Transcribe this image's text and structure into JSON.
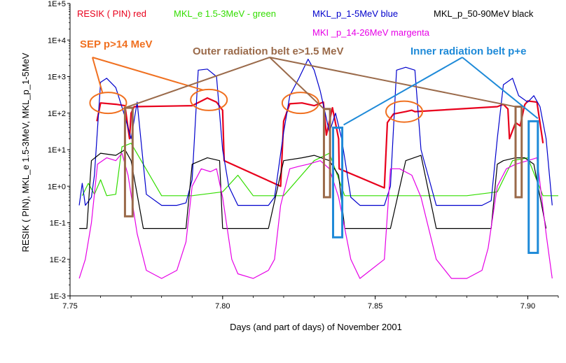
{
  "chart_data": {
    "type": "line",
    "title": "",
    "xlabel": "Days (and part of days) of November 2001",
    "ylabel": "RESIK ( PIN), MKL_e 1.5-3MeV,  MKL_p_1-5MeV",
    "y_scale": "log",
    "xlim": [
      7.75,
      7.91
    ],
    "ylim": [
      0.001,
      100000
    ],
    "x_ticks": [
      7.75,
      7.8,
      7.85,
      7.9
    ],
    "x_tick_labels": [
      "7.75",
      "7.80",
      "7.85",
      "7.90"
    ],
    "y_ticks": [
      0.001,
      0.01,
      0.1,
      1,
      10,
      100,
      1000,
      10000,
      100000
    ],
    "y_tick_labels": [
      "1E-3",
      "1E-2",
      "1E-1",
      "1E+0",
      "1E+1",
      "1E+2",
      "1E+3",
      "1E+4",
      "1E+5"
    ],
    "legend_position": "top",
    "series": [
      {
        "name": "RESIK ( PIN) red",
        "color": "#e8001c",
        "x": [
          7.7588,
          7.76,
          7.765,
          7.768,
          7.7695,
          7.77,
          7.771,
          7.79,
          7.795,
          7.798,
          7.8,
          7.8005,
          7.819,
          7.82,
          7.822,
          7.826,
          7.83,
          7.833,
          7.834,
          7.835,
          7.836,
          7.838,
          7.8382,
          7.853,
          7.854,
          7.856,
          7.86,
          7.862,
          7.863,
          7.89,
          7.892,
          7.8935,
          7.894,
          7.896,
          7.8975,
          7.899,
          7.9,
          7.903,
          7.905
        ],
        "y": [
          60,
          190,
          175,
          160,
          20,
          100,
          150,
          160,
          260,
          200,
          120,
          5,
          1,
          60,
          180,
          190,
          160,
          200,
          25,
          60,
          140,
          20,
          3,
          0.9,
          55,
          95,
          110,
          120,
          110,
          150,
          175,
          130,
          20,
          55,
          45,
          170,
          215,
          200,
          15
        ]
      },
      {
        "name": "MKL_e 1.5-3MeV - green",
        "color": "#33dd00",
        "x": [
          7.754,
          7.756,
          7.758,
          7.76,
          7.762,
          7.765,
          7.767,
          7.77,
          7.78,
          7.785,
          7.79,
          7.8,
          7.805,
          7.81,
          7.815,
          7.82,
          7.83,
          7.835,
          7.84,
          7.85,
          7.86,
          7.87,
          7.88,
          7.89,
          7.895,
          7.9,
          7.905,
          7.91
        ],
        "y": [
          0.55,
          1.2,
          0.6,
          1.5,
          0.55,
          0.6,
          12,
          15,
          0.55,
          0.55,
          0.55,
          0.7,
          2,
          0.55,
          0.55,
          0.55,
          5,
          8,
          0.55,
          0.55,
          0.55,
          0.55,
          0.55,
          0.7,
          5,
          6,
          0.55,
          0.55
        ]
      },
      {
        "name": "MKL_p_1-5MeV blue",
        "color": "#0000cc",
        "x": [
          7.753,
          7.754,
          7.755,
          7.757,
          7.758,
          7.76,
          7.762,
          7.765,
          7.768,
          7.77,
          7.772,
          7.775,
          7.78,
          7.785,
          7.788,
          7.79,
          7.792,
          7.795,
          7.798,
          7.8,
          7.802,
          7.805,
          7.81,
          7.815,
          7.817,
          7.82,
          7.822,
          7.825,
          7.828,
          7.83,
          7.832,
          7.835,
          7.837,
          7.839,
          7.842,
          7.845,
          7.85,
          7.853,
          7.855,
          7.857,
          7.86,
          7.863,
          7.865,
          7.87,
          7.875,
          7.88,
          7.885,
          7.888,
          7.89,
          7.892,
          7.895,
          7.897,
          7.9,
          7.902,
          7.904,
          7.906,
          7.908
        ],
        "y": [
          0.3,
          1.2,
          0.3,
          0.5,
          2,
          700,
          900,
          500,
          80,
          20,
          200,
          0.6,
          0.3,
          0.3,
          0.35,
          1.5,
          1500,
          1600,
          1000,
          10,
          1,
          0.3,
          0.3,
          0.3,
          0.5,
          30,
          300,
          900,
          3000,
          1500,
          400,
          30,
          100,
          20,
          0.5,
          0.3,
          0.3,
          0.3,
          1,
          1500,
          1800,
          1500,
          10,
          0.3,
          0.3,
          0.3,
          0.3,
          0.4,
          20,
          600,
          900,
          300,
          200,
          300,
          150,
          20,
          0.3
        ]
      },
      {
        "name": "MKL_p_50-90MeV black",
        "color": "#000000",
        "x": [
          7.753,
          7.7555,
          7.757,
          7.76,
          7.765,
          7.768,
          7.77,
          7.774,
          7.785,
          7.788,
          7.79,
          7.795,
          7.799,
          7.8,
          7.812,
          7.815,
          7.82,
          7.826,
          7.83,
          7.835,
          7.838,
          7.84,
          7.843,
          7.853,
          7.855,
          7.86,
          7.865,
          7.87,
          7.88,
          7.888,
          7.89,
          7.892,
          7.896,
          7.899,
          7.902,
          7.906
        ],
        "y": [
          0.07,
          0.07,
          5,
          8,
          7,
          10,
          5,
          0.07,
          0.07,
          0.07,
          4,
          6,
          5,
          0.07,
          0.07,
          0.07,
          5,
          6,
          7,
          5,
          2,
          0.07,
          0.07,
          0.07,
          0.07,
          5,
          7,
          0.07,
          0.07,
          0.07,
          4,
          5,
          6,
          6,
          4,
          0.07
        ]
      },
      {
        "name": "MKI _p_14-26MeV margenta",
        "color": "#e600e6",
        "x": [
          7.753,
          7.755,
          7.757,
          7.759,
          7.762,
          7.765,
          7.767,
          7.769,
          7.772,
          7.775,
          7.78,
          7.785,
          7.788,
          7.79,
          7.793,
          7.796,
          7.798,
          7.8,
          7.803,
          7.805,
          7.81,
          7.815,
          7.817,
          7.819,
          7.822,
          7.825,
          7.828,
          7.832,
          7.835,
          7.838,
          7.842,
          7.845,
          7.853,
          7.855,
          7.858,
          7.862,
          7.865,
          7.87,
          7.875,
          7.88,
          7.885,
          7.887,
          7.89,
          7.893,
          7.896,
          7.9,
          7.903,
          7.906,
          7.908
        ],
        "y": [
          0.003,
          0.01,
          0.1,
          4,
          6,
          5,
          8,
          2,
          0.05,
          0.005,
          0.003,
          0.005,
          0.03,
          1,
          3,
          2.5,
          3,
          0.5,
          0.01,
          0.004,
          0.003,
          0.005,
          0.01,
          0.3,
          3,
          3.5,
          4,
          5,
          3,
          0.5,
          0.01,
          0.003,
          0.01,
          3,
          3,
          2,
          0.5,
          0.01,
          0.003,
          0.003,
          0.005,
          0.02,
          1,
          3,
          4,
          5,
          6,
          0.05,
          0.003
        ]
      }
    ],
    "legend": [
      {
        "text": "RESIK ( PIN) red",
        "color": "#e8001c"
      },
      {
        "text": "MKL_e 1.5-3MeV - green",
        "color": "#33dd00"
      },
      {
        "text": "MKL_p_1-5MeV blue",
        "color": "#0000cc"
      },
      {
        "text": "MKL_p_50-90MeV black",
        "color": "#000000"
      },
      {
        "text": "MKI _p_14-26MeV margenta",
        "color": "#e600e6"
      }
    ],
    "annotations": [
      {
        "text": "SEP  p>14 MeV",
        "color": "#f07020"
      },
      {
        "text": "Outer radiation belt  e>1.5 MeV",
        "color": "#9a6a4a"
      },
      {
        "text": "Inner radiation belt p+e",
        "color": "#1e8ad8"
      }
    ],
    "sep_markers": [
      {
        "x": 7.7625,
        "y": 190
      },
      {
        "x": 7.7955,
        "y": 230
      },
      {
        "x": 7.8255,
        "y": 190
      },
      {
        "x": 7.8595,
        "y": 110
      }
    ],
    "outer_belt_boxes": [
      {
        "x0": 7.768,
        "x1": 7.7705,
        "y0": 0.15,
        "y1": 140
      },
      {
        "x0": 7.8332,
        "x1": 7.8352,
        "y0": 0.5,
        "y1": 130
      },
      {
        "x0": 7.896,
        "x1": 7.898,
        "y0": 0.5,
        "y1": 150
      }
    ],
    "inner_belt_boxes": [
      {
        "x0": 7.8362,
        "x1": 7.8392,
        "y0": 0.04,
        "y1": 40
      },
      {
        "x0": 7.9003,
        "x1": 7.9033,
        "y0": 0.015,
        "y1": 60
      }
    ]
  }
}
